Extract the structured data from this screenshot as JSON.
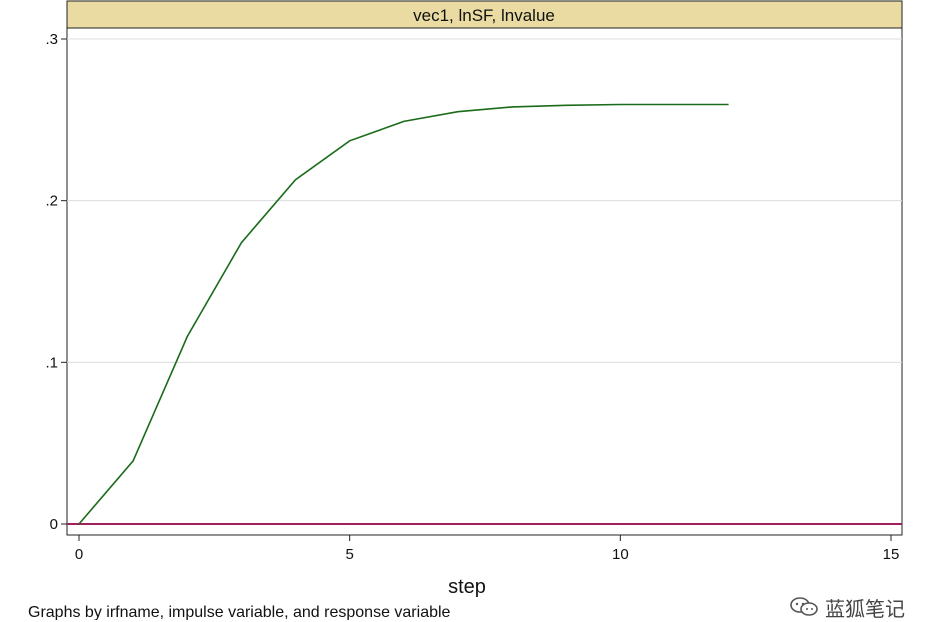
{
  "chart_data": {
    "type": "line",
    "title": "vec1, lnSF, lnvalue",
    "xlabel": "step",
    "ylabel": "",
    "note": "Graphs by irfname, impulse variable, and response variable",
    "xlim": [
      0,
      15
    ],
    "ylim": [
      0,
      0.3
    ],
    "xticks": [
      0,
      5,
      10,
      15
    ],
    "xtick_labels": [
      "0",
      "5",
      "10",
      "15"
    ],
    "yticks": [
      0,
      0.1,
      0.2,
      0.3
    ],
    "ytick_labels": [
      "0",
      ".1",
      ".2",
      ".3"
    ],
    "grid": "horizontal",
    "series": [
      {
        "color": "#1a6b1a",
        "x": [
          0,
          1,
          2,
          3,
          4,
          5,
          6,
          7,
          8,
          9,
          10,
          11,
          12
        ],
        "y": [
          0,
          0.039,
          0.116,
          0.174,
          0.213,
          0.237,
          0.249,
          0.255,
          0.258,
          0.259,
          0.2595,
          0.2595,
          0.2595
        ]
      }
    ],
    "reference_line": {
      "y": 0,
      "color": "#a0205a"
    },
    "title_bar_color": "#e9dba1"
  },
  "watermark": {
    "icon": "wechat-icon",
    "text": "蓝狐笔记"
  }
}
